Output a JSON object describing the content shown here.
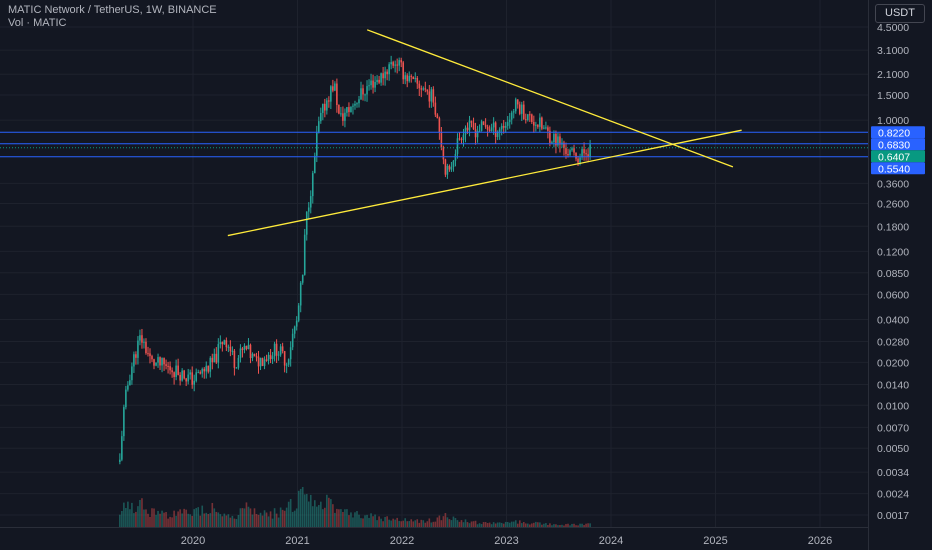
{
  "header": {
    "title": "MATIC Network / TetherUS, 1W, BINANCE",
    "indicator": "Vol · MATIC"
  },
  "currency": "USDT",
  "colors": {
    "background": "#131722",
    "up": "#26a69a",
    "down": "#ef5350",
    "trendline": "#ffeb3b",
    "level": "#2962ff",
    "last_price": "#089981"
  },
  "chart_data": {
    "type": "candlestick",
    "scale": "log",
    "y_ticks": [
      "4.5000",
      "3.1000",
      "2.1000",
      "1.5000",
      "1.0000",
      "0.3600",
      "0.2600",
      "0.1800",
      "0.1200",
      "0.0850",
      "0.0600",
      "0.0400",
      "0.0280",
      "0.0200",
      "0.0140",
      "0.0100",
      "0.0070",
      "0.0050",
      "0.0034",
      "0.0024",
      "0.0017"
    ],
    "x_ticks": [
      "2020",
      "2021",
      "2022",
      "2023",
      "2024",
      "2025",
      "2026"
    ],
    "price_labels": [
      {
        "value": "0.8220",
        "color": "#2962ff"
      },
      {
        "value": "0.6830",
        "color": "#2962ff"
      },
      {
        "value": "0.6407",
        "color": "#089981"
      },
      {
        "value": "0.5540",
        "color": "#2962ff"
      }
    ],
    "horizontal_levels": [
      0.822,
      0.683,
      0.554
    ],
    "last_price": 0.6407,
    "trendlines": [
      {
        "name": "descending resistance",
        "from": [
          "2021-09",
          4.3
        ],
        "to": [
          "2025-03",
          0.47
        ]
      },
      {
        "name": "ascending support",
        "from": [
          "2020-05",
          0.155
        ],
        "to": [
          "2025-04",
          0.85
        ]
      }
    ],
    "series": {
      "t": [
        2019.3,
        2019.5,
        2019.6,
        2019.8,
        2020.0,
        2020.2,
        2020.3,
        2020.4,
        2020.5,
        2020.6,
        2020.7,
        2020.8,
        2020.9,
        2021.0,
        2021.05,
        2021.1,
        2021.15,
        2021.2,
        2021.3,
        2021.35,
        2021.4,
        2021.5,
        2021.6,
        2021.7,
        2021.8,
        2021.9,
        2021.95,
        2022.0,
        2022.1,
        2022.2,
        2022.3,
        2022.4,
        2022.45,
        2022.5,
        2022.6,
        2022.7,
        2022.8,
        2022.9,
        2023.0,
        2023.1,
        2023.2,
        2023.3,
        2023.4,
        2023.5,
        2023.6,
        2023.7,
        2023.8
      ],
      "close": [
        0.004,
        0.03,
        0.02,
        0.018,
        0.015,
        0.02,
        0.03,
        0.02,
        0.025,
        0.02,
        0.022,
        0.025,
        0.02,
        0.04,
        0.08,
        0.25,
        0.4,
        0.9,
        1.5,
        1.8,
        1.0,
        1.2,
        1.5,
        1.8,
        2.0,
        2.5,
        2.6,
        2.2,
        1.8,
        1.7,
        1.4,
        0.5,
        0.4,
        0.6,
        0.9,
        0.85,
        0.9,
        0.85,
        0.95,
        1.3,
        1.05,
        0.95,
        0.8,
        0.7,
        0.58,
        0.55,
        0.6407
      ],
      "volume": [
        0.3,
        0.4,
        0.25,
        0.2,
        0.25,
        0.35,
        0.2,
        0.15,
        0.3,
        0.25,
        0.2,
        0.25,
        0.3,
        0.45,
        0.55,
        0.45,
        0.35,
        0.3,
        0.5,
        0.4,
        0.3,
        0.25,
        0.2,
        0.18,
        0.15,
        0.15,
        0.12,
        0.12,
        0.1,
        0.1,
        0.12,
        0.18,
        0.15,
        0.12,
        0.1,
        0.08,
        0.06,
        0.06,
        0.07,
        0.09,
        0.07,
        0.06,
        0.05,
        0.04,
        0.04,
        0.04,
        0.05
      ]
    }
  }
}
